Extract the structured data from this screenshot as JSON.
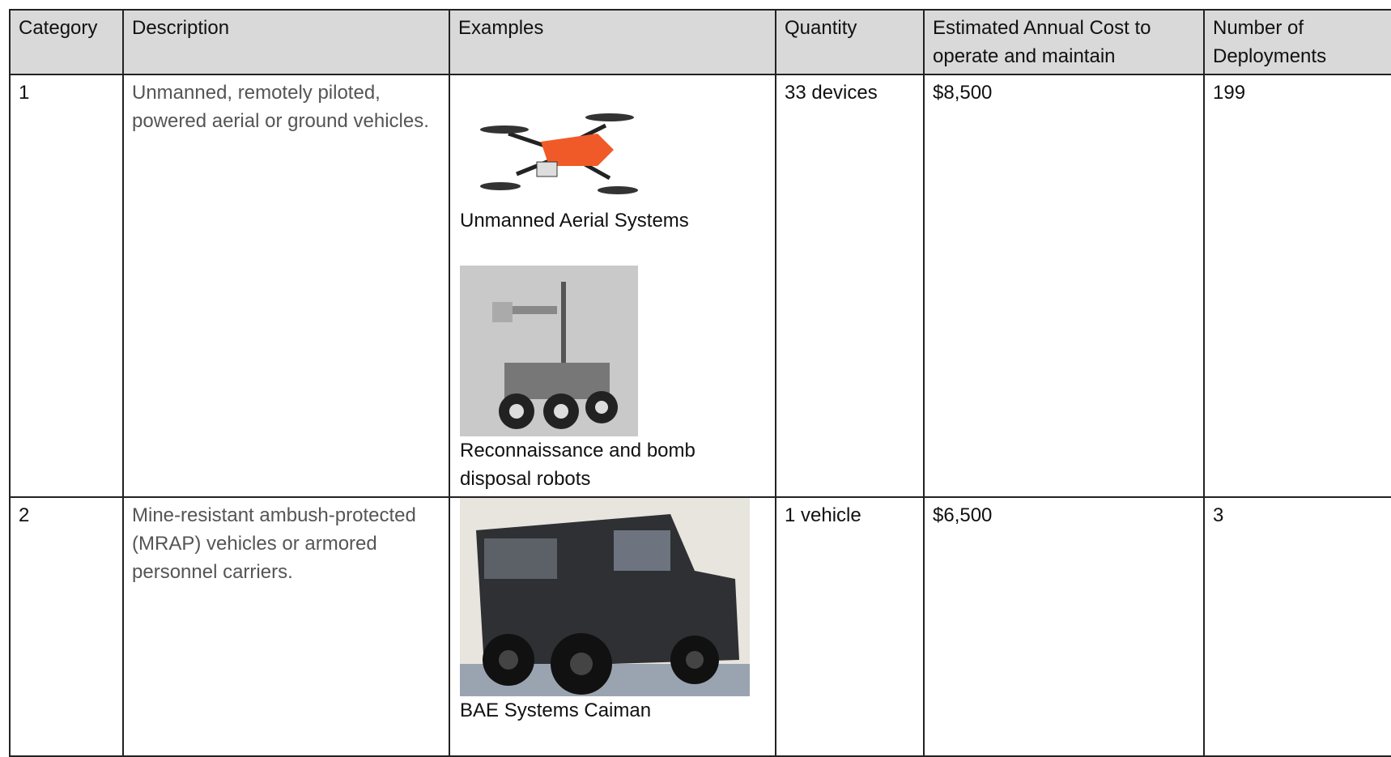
{
  "table": {
    "header": [
      "Category",
      "Description",
      "Examples",
      "Quantity",
      "Estimated Annual Cost to operate and maintain",
      "Number of Deployments"
    ],
    "rows": [
      {
        "category": "1",
        "description": "Unmanned, remotely piloted, powered aerial or ground vehicles.",
        "examples": [
          "Unmanned Aerial Systems",
          "Reconnaissance and bomb disposal robots"
        ],
        "quantity": "33 devices",
        "cost": "$8,500",
        "deployments": "199"
      },
      {
        "category": "2",
        "description": "Mine-resistant ambush-protected (MRAP) vehicles or armored personnel carriers.",
        "examples": [
          "BAE Systems Caiman"
        ],
        "quantity": "1 vehicle",
        "cost": "$6,500",
        "deployments": "3"
      }
    ]
  }
}
